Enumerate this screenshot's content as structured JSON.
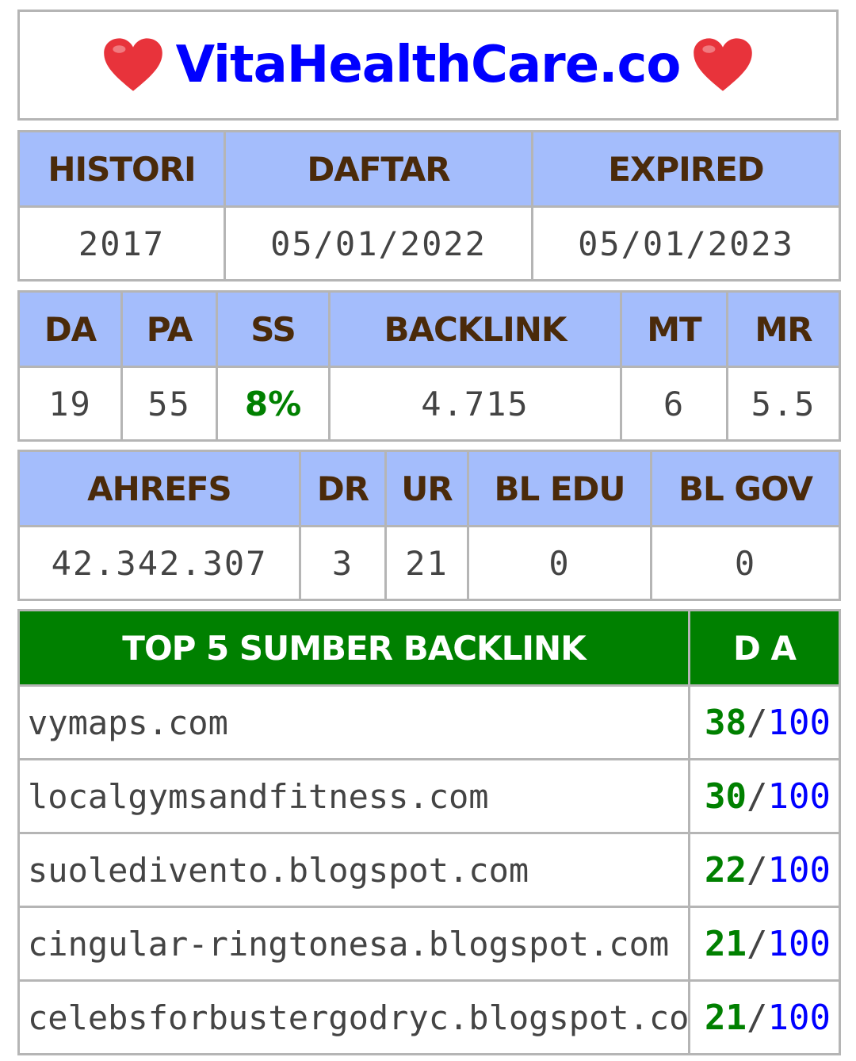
{
  "header": {
    "site": "VitaHealthCare.co",
    "left_icon": "heart-icon",
    "right_icon": "heart-icon",
    "heart_color": "#e8333b",
    "title_color": "#0000ff"
  },
  "table1": {
    "headers": [
      "HISTORI",
      "DAFTAR",
      "EXPIRED"
    ],
    "values": [
      "2017",
      "05/01/2022",
      "05/01/2023"
    ]
  },
  "table2": {
    "headers": [
      "DA",
      "PA",
      "SS",
      "BACKLINK",
      "MT",
      "MR"
    ],
    "values": [
      "19",
      "55",
      "8%",
      "4.715",
      "6",
      "5.5"
    ]
  },
  "table3": {
    "headers": [
      "AHREFS",
      "DR",
      "UR",
      "BL EDU",
      "BL GOV"
    ],
    "values": [
      "42.342.307",
      "3",
      "21",
      "0",
      "0"
    ]
  },
  "top_backlinks": {
    "header_source": "TOP 5 SUMBER BACKLINK",
    "header_da": "D A",
    "separator": "/",
    "rows": [
      {
        "source": "vymaps.com",
        "da": "38",
        "max": "100"
      },
      {
        "source": "localgymsandfitness.com",
        "da": "30",
        "max": "100"
      },
      {
        "source": "suoledivento.blogspot.com",
        "da": "22",
        "max": "100"
      },
      {
        "source": "cingular-ringtonesa.blogspot.com",
        "da": "21",
        "max": "100"
      },
      {
        "source": "celebsforbustergodryc.blogspot.com",
        "da": "21",
        "max": "100"
      }
    ]
  },
  "colors": {
    "header_bg": "#a4bdfc",
    "header_text": "#4a2a0a",
    "green_header": "#008000",
    "border": "#b5b5b5"
  }
}
